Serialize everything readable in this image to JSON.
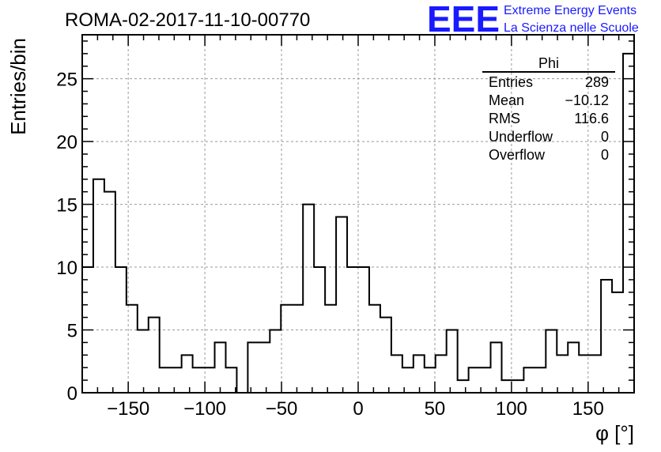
{
  "chart_data": {
    "type": "bar",
    "title": "ROMA-02-2017-11-10-00770",
    "xlabel": "φ [°]",
    "ylabel": "Entries/bin",
    "xlim": [
      -180,
      180
    ],
    "ylim": [
      0,
      28.5
    ],
    "bin_width": 7.2,
    "x_ticks": [
      -150,
      -100,
      -50,
      0,
      50,
      100,
      150
    ],
    "x_tick_labels": [
      "−150",
      "−100",
      "−50",
      "0",
      "50",
      "100",
      "150"
    ],
    "y_ticks": [
      0,
      5,
      10,
      15,
      20,
      25
    ],
    "y_tick_labels": [
      "0",
      "5",
      "10",
      "15",
      "20",
      "25"
    ],
    "grid": true,
    "bin_low_edges": [
      -180,
      -172.8,
      -165.6,
      -158.4,
      -151.2,
      -144,
      -136.8,
      -129.6,
      -122.4,
      -115.2,
      -108,
      -100.8,
      -93.6,
      -86.4,
      -79.2,
      -72,
      -64.8,
      -57.6,
      -50.4,
      -43.2,
      -36,
      -28.8,
      -21.6,
      -14.4,
      -7.2,
      0,
      7.2,
      14.4,
      21.6,
      28.8,
      36,
      43.2,
      50.4,
      57.6,
      64.8,
      72,
      79.2,
      86.4,
      93.6,
      100.8,
      108,
      115.2,
      122.4,
      129.6,
      136.8,
      144,
      151.2,
      158.4,
      165.6,
      172.8
    ],
    "values": [
      10,
      17,
      16,
      10,
      7,
      5,
      6,
      2,
      2,
      3,
      2,
      2,
      4,
      2,
      0,
      4,
      4,
      5,
      7,
      7,
      15,
      10,
      7,
      14,
      10,
      10,
      7,
      6,
      3,
      2,
      3,
      2,
      3,
      5,
      1,
      2,
      2,
      4,
      1,
      1,
      2,
      2,
      5,
      3,
      4,
      3,
      3,
      9,
      8,
      27
    ],
    "stats_box": {
      "title": "Phi",
      "rows": [
        {
          "label": "Entries",
          "value": "289"
        },
        {
          "label": "Mean",
          "value": "−10.12"
        },
        {
          "label": "RMS",
          "value": "116.6"
        },
        {
          "label": "Underflow",
          "value": "0"
        },
        {
          "label": "Overflow",
          "value": "0"
        }
      ]
    }
  },
  "logo": {
    "mark": "EEE",
    "line1": "Extreme Energy Events",
    "line2": "La Scienza nelle Scuole",
    "color": "#1a1aff"
  }
}
